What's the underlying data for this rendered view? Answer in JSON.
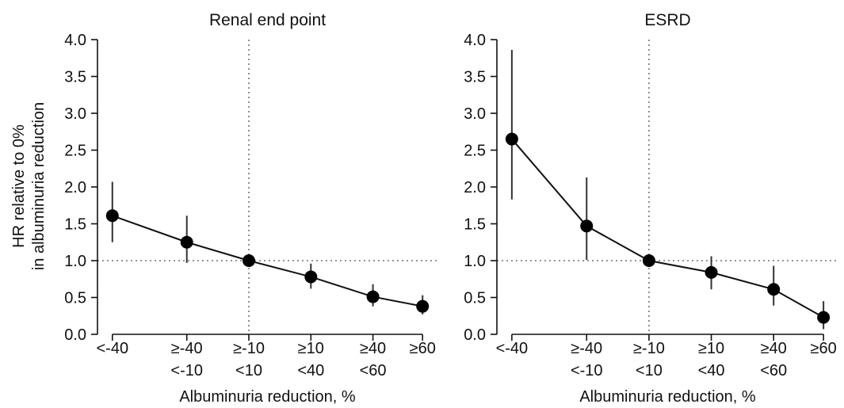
{
  "figure": {
    "ylabel_line1": "HR relative to 0%",
    "ylabel_line2": "in albuminuria reduction"
  },
  "chart_data": [
    {
      "type": "line",
      "title": "Renal end point",
      "xlabel": "Albuminuria reduction, %",
      "ylabel": "HR relative to 0% in albuminuria reduction",
      "ylim": [
        0,
        4.0
      ],
      "yticks": [
        "0.0",
        "0.5",
        "1.0",
        "1.5",
        "2.0",
        "2.5",
        "3.0",
        "3.5",
        "4.0"
      ],
      "reference_line_y": 1.0,
      "reference_line_x": 0,
      "categories": [
        {
          "line1": "<-40",
          "line2": "",
          "x": -55
        },
        {
          "line1": "≥-40",
          "line2": "<-10",
          "x": -25
        },
        {
          "line1": "≥-10",
          "line2": "<10",
          "x": 0
        },
        {
          "line1": "≥10",
          "line2": "<40",
          "x": 25
        },
        {
          "line1": "≥40",
          "line2": "<60",
          "x": 50
        },
        {
          "line1": "≥60",
          "line2": "",
          "x": 70
        }
      ],
      "values": [
        1.61,
        1.25,
        1.0,
        0.78,
        0.51,
        0.38
      ],
      "ci_lower": [
        1.25,
        0.97,
        1.0,
        0.62,
        0.38,
        0.27
      ],
      "ci_upper": [
        2.07,
        1.61,
        1.0,
        0.96,
        0.68,
        0.53
      ]
    },
    {
      "type": "line",
      "title": "ESRD",
      "xlabel": "Albuminuria reduction, %",
      "ylabel": "",
      "ylim": [
        0,
        4.0
      ],
      "yticks": [
        "0.0",
        "0.5",
        "1.0",
        "1.5",
        "2.0",
        "2.5",
        "3.0",
        "3.5",
        "4.0"
      ],
      "reference_line_y": 1.0,
      "reference_line_x": 0,
      "categories": [
        {
          "line1": "<-40",
          "line2": "",
          "x": -55
        },
        {
          "line1": "≥-40",
          "line2": "<-10",
          "x": -25
        },
        {
          "line1": "≥-10",
          "line2": "<10",
          "x": 0
        },
        {
          "line1": "≥10",
          "line2": "<40",
          "x": 25
        },
        {
          "line1": "≥40",
          "line2": "<60",
          "x": 50
        },
        {
          "line1": "≥60",
          "line2": "",
          "x": 70
        }
      ],
      "values": [
        2.65,
        1.47,
        1.0,
        0.84,
        0.61,
        0.23
      ],
      "ci_lower": [
        1.83,
        1.01,
        1.0,
        0.61,
        0.39,
        0.07
      ],
      "ci_upper": [
        3.86,
        2.13,
        1.0,
        1.06,
        0.93,
        0.45
      ]
    }
  ]
}
